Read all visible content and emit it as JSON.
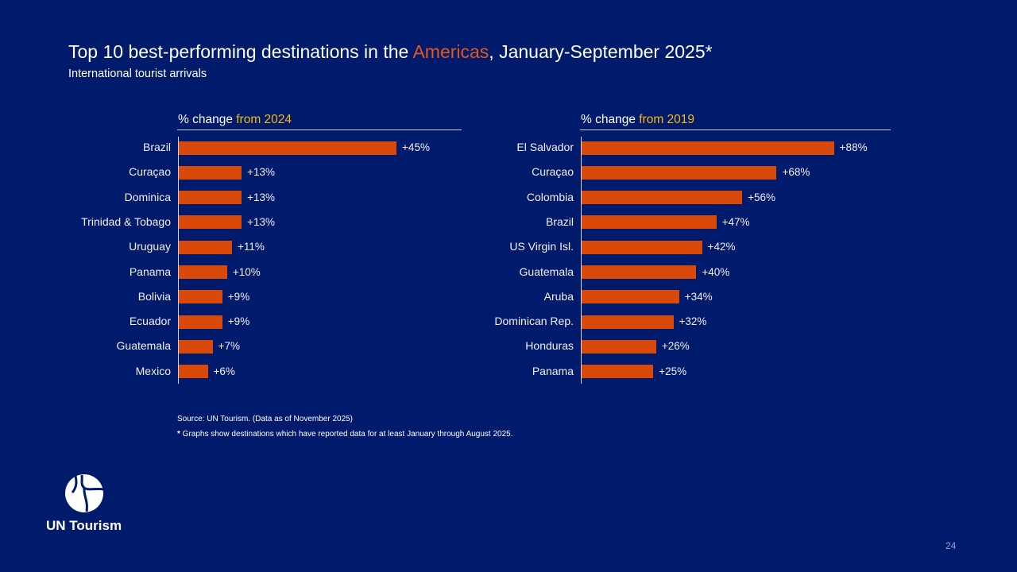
{
  "title": {
    "pre": "Top 10 best-performing destinations in the ",
    "highlight": "Americas",
    "post": ", January-September 2025*"
  },
  "subtitle": "International tourist arrivals",
  "colors": {
    "background": "#001b6c",
    "bar": "#d9490a",
    "highlight": "#e4561c",
    "accent": "#f7b90f"
  },
  "chart_data": [
    {
      "type": "bar",
      "orientation": "horizontal",
      "title_prefix": "% change ",
      "title_accent": "from 2024",
      "categories": [
        "Brazil",
        "Curaçao",
        "Dominica",
        "Trinidad & Tobago",
        "Uruguay",
        "Panama",
        "Bolivia",
        "Ecuador",
        "Guatemala",
        "Mexico"
      ],
      "values": [
        45,
        13,
        13,
        13,
        11,
        10,
        9,
        9,
        7,
        6
      ],
      "labels": [
        "+45%",
        "+13%",
        "+13%",
        "+13%",
        "+11%",
        "+10%",
        "+9%",
        "+9%",
        "+7%",
        "+6%"
      ]
    },
    {
      "type": "bar",
      "orientation": "horizontal",
      "title_prefix": "% change ",
      "title_accent": "from 2019",
      "categories": [
        "El Salvador",
        "Curaçao",
        "Colombia",
        "Brazil",
        "US Virgin Isl.",
        "Guatemala",
        "Aruba",
        "Dominican Rep.",
        "Honduras",
        "Panama"
      ],
      "values": [
        88,
        68,
        56,
        47,
        42,
        40,
        34,
        32,
        26,
        25
      ],
      "labels": [
        "+88%",
        "+68%",
        "+56%",
        "+47%",
        "+42%",
        "+40%",
        "+34%",
        "+32%",
        "+26%",
        "+25%"
      ]
    }
  ],
  "source": "Source: UN Tourism. (Data as of November 2025)",
  "footnote_mark": "*",
  "footnote": " Graphs show destinations which have reported data for at least January through August 2025.",
  "logo_text": "UN Tourism",
  "page_number": "24"
}
